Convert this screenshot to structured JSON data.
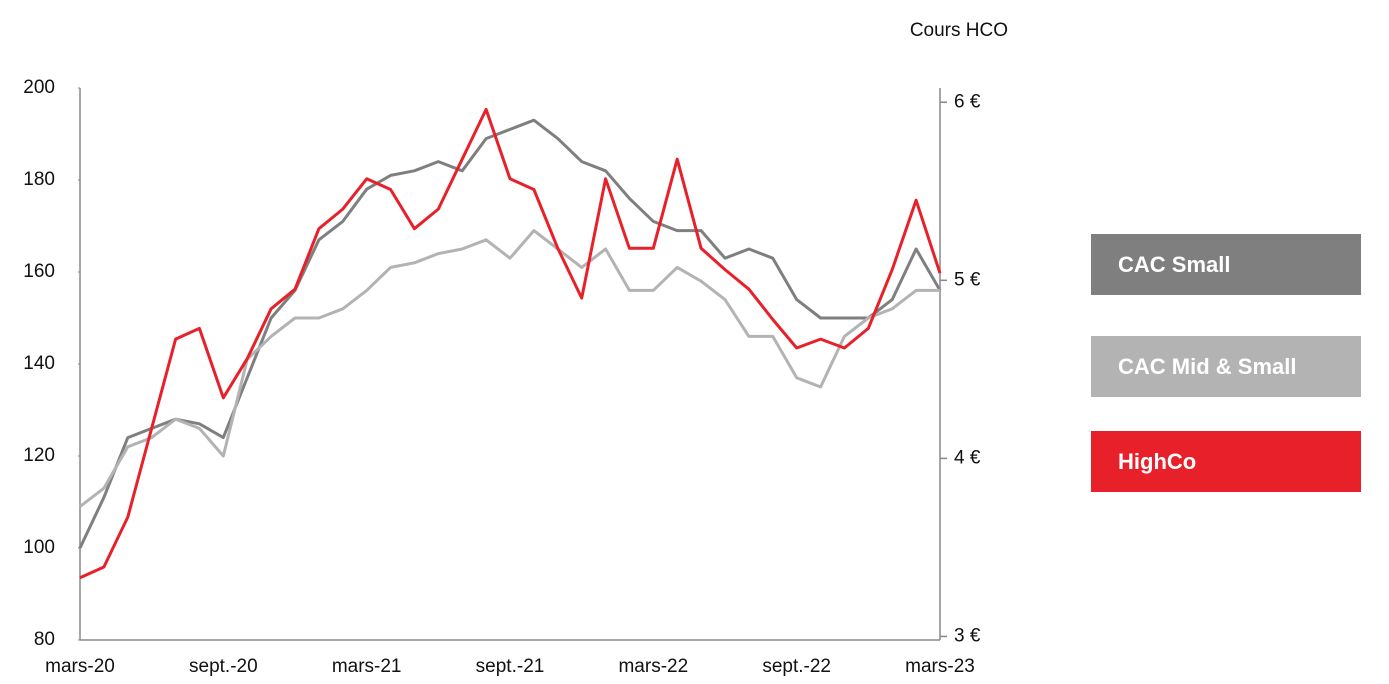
{
  "chart_data": {
    "type": "line",
    "y2_label": "Cours HCO",
    "categories": [
      "mars-20",
      null,
      null,
      null,
      null,
      null,
      "sept.-20",
      null,
      null,
      null,
      null,
      null,
      "mars-21",
      null,
      null,
      null,
      null,
      null,
      "sept.-21",
      null,
      null,
      null,
      null,
      null,
      "mars-22",
      null,
      null,
      null,
      null,
      null,
      "sept.-22",
      null,
      null,
      null,
      null,
      null,
      "mars-23"
    ],
    "series": [
      {
        "name": "CAC Small",
        "color": "#7f7f7f",
        "values": [
          100,
          111,
          124,
          126,
          128,
          127,
          124,
          137,
          150,
          156,
          167,
          171,
          178,
          181,
          182,
          184,
          182,
          189,
          191,
          193,
          189,
          184,
          182,
          176,
          171,
          169,
          169,
          163,
          165,
          163,
          154,
          150,
          150,
          150,
          154,
          165,
          156
        ]
      },
      {
        "name": "CAC Mid & Small",
        "color": "#b3b3b3",
        "values": [
          109,
          113,
          122,
          124,
          128,
          126,
          120,
          141,
          146,
          150,
          150,
          152,
          156,
          161,
          162,
          164,
          165,
          167,
          163,
          169,
          165,
          161,
          165,
          156,
          156,
          161,
          158,
          154,
          146,
          146,
          137,
          135,
          146,
          150,
          152,
          156,
          156
        ]
      },
      {
        "name": "HighCo",
        "color": "#e8202a",
        "axis": "y2",
        "values": [
          3.33,
          3.39,
          3.67,
          4.17,
          4.67,
          4.73,
          4.34,
          4.56,
          4.84,
          4.95,
          5.29,
          5.4,
          5.57,
          5.51,
          5.29,
          5.4,
          5.68,
          5.96,
          5.57,
          5.51,
          5.18,
          4.9,
          5.57,
          5.18,
          5.18,
          5.68,
          5.18,
          5.06,
          4.95,
          4.78,
          4.62,
          4.67,
          4.62,
          4.73,
          5.06,
          5.45,
          5.04
        ]
      }
    ],
    "ylim": [
      80,
      200
    ],
    "yticks": [
      80,
      100,
      120,
      140,
      160,
      180,
      200
    ],
    "y2lim": [
      2.98,
      6.08
    ],
    "y2ticks": [
      {
        "value": 3,
        "label": "3 €"
      },
      {
        "value": 4,
        "label": "4 €"
      },
      {
        "value": 5,
        "label": "5 €"
      },
      {
        "value": 6,
        "label": "6 €"
      }
    ],
    "grid": false,
    "legend": "right"
  }
}
